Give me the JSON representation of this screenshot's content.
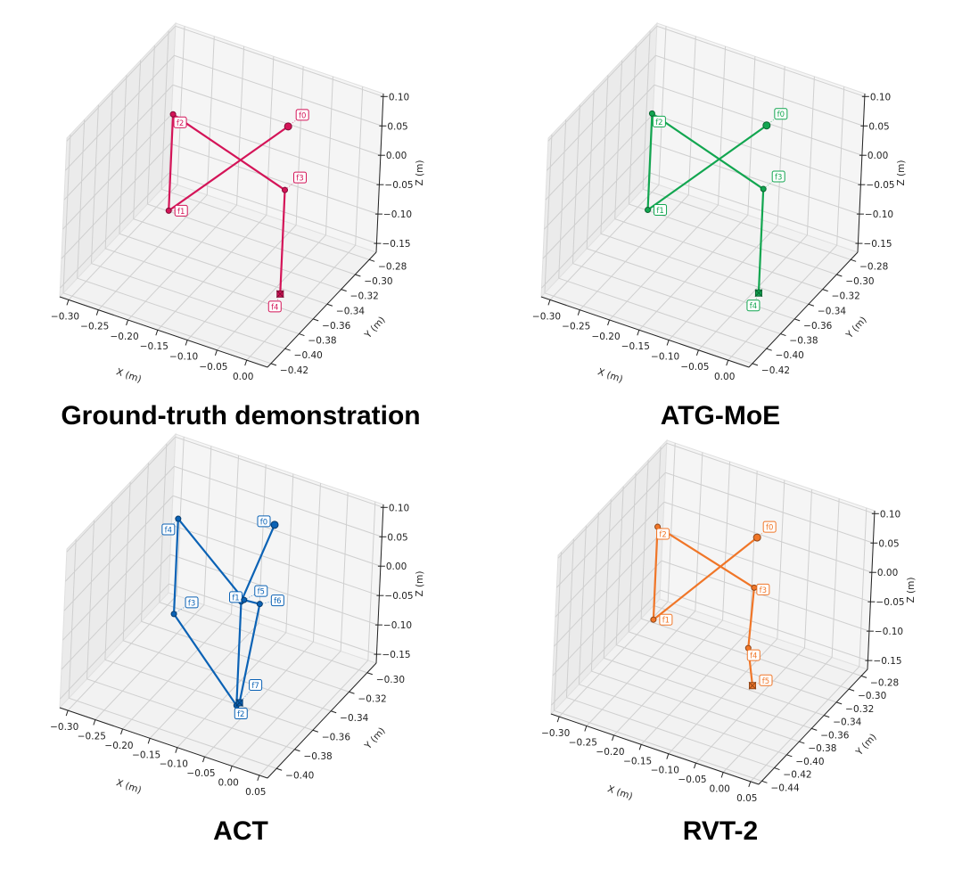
{
  "chart_data": [
    {
      "type": "scatter3d-line",
      "title": "Ground-truth demonstration",
      "color": "#d41458",
      "xlabel": "X (m)",
      "ylabel": "Y (m)",
      "zlabel": "Z (m)",
      "xlim": [
        -0.315,
        0.035
      ],
      "ylim": [
        -0.425,
        -0.27
      ],
      "zlim": [
        -0.165,
        0.105
      ],
      "xticks": [
        "−0.30",
        "−0.25",
        "−0.20",
        "−0.15",
        "−0.10",
        "−0.05",
        "0.00"
      ],
      "yticks": [
        "−0.42",
        "−0.40",
        "−0.38",
        "−0.36",
        "−0.34",
        "−0.32",
        "−0.30",
        "−0.28"
      ],
      "zticks": [
        "−0.15",
        "−0.10",
        "−0.05",
        "0.00",
        "0.05",
        "0.10"
      ],
      "grid": true,
      "points": [
        {
          "label": "f0",
          "x": -0.084,
          "y": -0.303,
          "z": 0.05
        },
        {
          "label": "f1",
          "x": -0.236,
          "y": -0.339,
          "z": -0.1
        },
        {
          "label": "f2",
          "x": -0.236,
          "y": -0.339,
          "z": 0.064
        },
        {
          "label": "f3",
          "x": -0.027,
          "y": -0.355,
          "z": 0.027
        },
        {
          "label": "f4",
          "x": -0.027,
          "y": -0.355,
          "z": -0.15
        }
      ]
    },
    {
      "type": "scatter3d-line",
      "title": "ATG-MoE",
      "color": "#12a650",
      "xlabel": "X (m)",
      "ylabel": "Y (m)",
      "zlabel": "Z (m)",
      "xlim": [
        -0.315,
        0.035
      ],
      "ylim": [
        -0.425,
        -0.27
      ],
      "zlim": [
        -0.165,
        0.105
      ],
      "xticks": [
        "−0.30",
        "−0.25",
        "−0.20",
        "−0.15",
        "−0.10",
        "−0.05",
        "0.00"
      ],
      "yticks": [
        "−0.42",
        "−0.40",
        "−0.38",
        "−0.36",
        "−0.34",
        "−0.32",
        "−0.30",
        "−0.28"
      ],
      "zticks": [
        "−0.15",
        "−0.10",
        "−0.05",
        "0.00",
        "0.05",
        "0.10"
      ],
      "grid": true,
      "points": [
        {
          "label": "f0",
          "x": -0.089,
          "y": -0.303,
          "z": 0.05
        },
        {
          "label": "f1",
          "x": -0.24,
          "y": -0.339,
          "z": -0.1
        },
        {
          "label": "f2",
          "x": -0.24,
          "y": -0.339,
          "z": 0.064
        },
        {
          "label": "f3",
          "x": -0.032,
          "y": -0.355,
          "z": 0.027
        },
        {
          "label": "f4",
          "x": -0.032,
          "y": -0.355,
          "z": -0.15
        }
      ]
    },
    {
      "type": "scatter3d-line",
      "title": "ACT",
      "color": "#0b62b5",
      "xlabel": "X (m)",
      "ylabel": "Y (m)",
      "zlabel": "Z (m)",
      "xlim": [
        -0.315,
        0.065
      ],
      "ylim": [
        -0.41,
        -0.29
      ],
      "zlim": [
        -0.165,
        0.105
      ],
      "xticks": [
        "−0.30",
        "−0.25",
        "−0.20",
        "−0.15",
        "−0.10",
        "−0.05",
        "0.00",
        "0.05"
      ],
      "yticks": [
        "−0.40",
        "−0.38",
        "−0.36",
        "−0.34",
        "−0.32",
        "−0.30"
      ],
      "zticks": [
        "−0.15",
        "−0.10",
        "−0.05",
        "0.00",
        "0.05",
        "0.10"
      ],
      "grid": true,
      "points": [
        {
          "label": "f0",
          "x": -0.092,
          "y": -0.314,
          "z": 0.06
        },
        {
          "label": "f1",
          "x": -0.062,
          "y": -0.368,
          "z": 0.027
        },
        {
          "label": "f2",
          "x": -0.062,
          "y": -0.368,
          "z": -0.15
        },
        {
          "label": "f3",
          "x": -0.232,
          "y": -0.336,
          "z": -0.1
        },
        {
          "label": "f4",
          "x": -0.232,
          "y": -0.336,
          "z": 0.062
        },
        {
          "label": "f5",
          "x": -0.06,
          "y": -0.366,
          "z": 0.027
        },
        {
          "label": "f6",
          "x": -0.033,
          "y": -0.365,
          "z": 0.027
        },
        {
          "label": "f7",
          "x": -0.06,
          "y": -0.366,
          "z": -0.148
        }
      ]
    },
    {
      "type": "scatter3d-line",
      "title": "RVT-2",
      "color": "#f07628",
      "xlabel": "X (m)",
      "ylabel": "Y (m)",
      "zlabel": "Z (m)",
      "xlim": [
        -0.315,
        0.065
      ],
      "ylim": [
        -0.445,
        -0.27
      ],
      "zlim": [
        -0.165,
        0.105
      ],
      "xticks": [
        "−0.30",
        "−0.25",
        "−0.20",
        "−0.15",
        "−0.10",
        "−0.05",
        "0.00",
        "0.05"
      ],
      "yticks": [
        "−0.44",
        "−0.42",
        "−0.40",
        "−0.38",
        "−0.36",
        "−0.34",
        "−0.32",
        "−0.30",
        "−0.28"
      ],
      "zticks": [
        "−0.15",
        "−0.10",
        "−0.05",
        "0.00",
        "0.05",
        "0.10"
      ],
      "grid": true,
      "points": [
        {
          "label": "f0",
          "x": -0.103,
          "y": -0.309,
          "z": 0.05
        },
        {
          "label": "f1",
          "x": -0.249,
          "y": -0.341,
          "z": -0.1
        },
        {
          "label": "f2",
          "x": -0.249,
          "y": -0.341,
          "z": 0.058
        },
        {
          "label": "f3",
          "x": -0.1,
          "y": -0.313,
          "z": -0.03
        },
        {
          "label": "f4",
          "x": -0.095,
          "y": -0.323,
          "z": -0.12
        },
        {
          "label": "f5",
          "x": -0.062,
          "y": -0.344,
          "z": -0.15
        }
      ]
    }
  ]
}
